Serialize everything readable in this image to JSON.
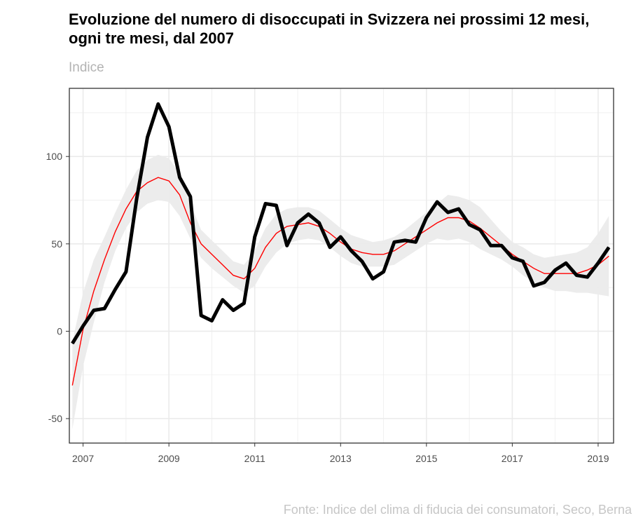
{
  "chart": {
    "title_line1": "Evoluzione del numero di disoccupati in Svizzera nei prossimi 12 mesi,",
    "title_line2": "ogni tre mesi, dal 2007",
    "subtitle": "Indice",
    "caption": "Fonte: Indice del clima di fiducia dei consumatori, Seco, Berna"
  },
  "chart_data": {
    "type": "line",
    "title": "Evoluzione del numero di disoccupati in Svizzera nei prossimi 12 mesi, ogni tre mesi, dal 2007",
    "subtitle": "Indice",
    "xlabel": "",
    "ylabel": "",
    "xlim": [
      2006.68,
      2019.36
    ],
    "ylim": [
      -64,
      139
    ],
    "x_ticks": [
      2007,
      2009,
      2011,
      2013,
      2015,
      2017,
      2019
    ],
    "x_tick_labels": [
      "2007",
      "2009",
      "2011",
      "2013",
      "2015",
      "2017",
      "2019"
    ],
    "y_ticks": [
      -50,
      0,
      50,
      100
    ],
    "y_tick_labels": [
      "-50",
      "0",
      "50",
      "100"
    ],
    "grid": true,
    "colors": {
      "series": "#000000",
      "smooth": "#ff0000",
      "band": "#ebebeb",
      "grid": "#ebebeb",
      "frame": "#333333"
    },
    "series": [
      {
        "style": "thick-black",
        "x": [
          2006.75,
          2007.0,
          2007.25,
          2007.5,
          2007.75,
          2008.0,
          2008.25,
          2008.5,
          2008.75,
          2009.0,
          2009.25,
          2009.5,
          2009.75,
          2010.0,
          2010.25,
          2010.5,
          2010.75,
          2011.0,
          2011.25,
          2011.5,
          2011.75,
          2012.0,
          2012.25,
          2012.5,
          2012.75,
          2013.0,
          2013.25,
          2013.5,
          2013.75,
          2014.0,
          2014.25,
          2014.5,
          2014.75,
          2015.0,
          2015.25,
          2015.5,
          2015.75,
          2016.0,
          2016.25,
          2016.5,
          2016.75,
          2017.0,
          2017.25,
          2017.5,
          2017.75,
          2018.0,
          2018.25,
          2018.5,
          2018.75,
          2019.0,
          2019.25
        ],
        "values": [
          -7,
          3,
          12,
          13,
          24,
          34,
          76,
          111,
          130,
          117,
          88,
          77,
          9,
          6,
          18,
          12,
          16,
          54,
          73,
          72,
          49,
          62,
          67,
          62,
          48,
          54,
          46,
          40,
          30,
          34,
          51,
          52,
          51,
          65,
          74,
          68,
          70,
          61,
          58,
          49,
          49,
          42,
          40,
          26,
          28,
          35,
          39,
          32,
          31,
          39,
          48
        ]
      },
      {
        "style": "smooth-red",
        "x": [
          2006.75,
          2007.0,
          2007.25,
          2007.5,
          2007.75,
          2008.0,
          2008.25,
          2008.5,
          2008.75,
          2009.0,
          2009.25,
          2009.5,
          2009.75,
          2010.0,
          2010.25,
          2010.5,
          2010.75,
          2011.0,
          2011.25,
          2011.5,
          2011.75,
          2012.0,
          2012.25,
          2012.5,
          2012.75,
          2013.0,
          2013.25,
          2013.5,
          2013.75,
          2014.0,
          2014.25,
          2014.5,
          2014.75,
          2015.0,
          2015.25,
          2015.5,
          2015.75,
          2016.0,
          2016.25,
          2016.5,
          2016.75,
          2017.0,
          2017.25,
          2017.5,
          2017.75,
          2018.0,
          2018.25,
          2018.5,
          2018.75,
          2019.0,
          2019.25
        ],
        "values": [
          -31,
          1,
          23,
          41,
          57,
          70,
          80,
          85,
          88,
          86,
          78,
          62,
          50,
          44,
          38,
          32,
          30,
          36,
          48,
          56,
          60,
          61,
          62,
          60,
          56,
          51,
          47,
          45,
          44,
          44,
          46,
          50,
          54,
          58,
          62,
          65,
          65,
          63,
          59,
          54,
          49,
          44,
          40,
          36,
          33,
          33,
          33,
          33,
          35,
          38,
          43
        ],
        "band_lower": [
          -56,
          -20,
          5,
          28,
          46,
          59,
          68,
          73,
          75,
          74,
          66,
          53,
          42,
          36,
          31,
          26,
          22,
          26,
          37,
          45,
          50,
          52,
          53,
          52,
          48,
          43,
          39,
          37,
          37,
          37,
          38,
          42,
          46,
          50,
          53,
          52,
          53,
          51,
          47,
          44,
          41,
          37,
          32,
          28,
          25,
          23,
          23,
          22,
          22,
          21,
          20
        ],
        "band_upper": [
          -6,
          22,
          41,
          54,
          68,
          81,
          92,
          98,
          101,
          99,
          90,
          73,
          58,
          52,
          46,
          40,
          38,
          46,
          59,
          67,
          70,
          71,
          71,
          69,
          64,
          59,
          55,
          53,
          51,
          52,
          54,
          58,
          63,
          68,
          73,
          78,
          77,
          75,
          71,
          64,
          57,
          51,
          48,
          44,
          42,
          43,
          44,
          45,
          48,
          56,
          66
        ]
      }
    ]
  }
}
